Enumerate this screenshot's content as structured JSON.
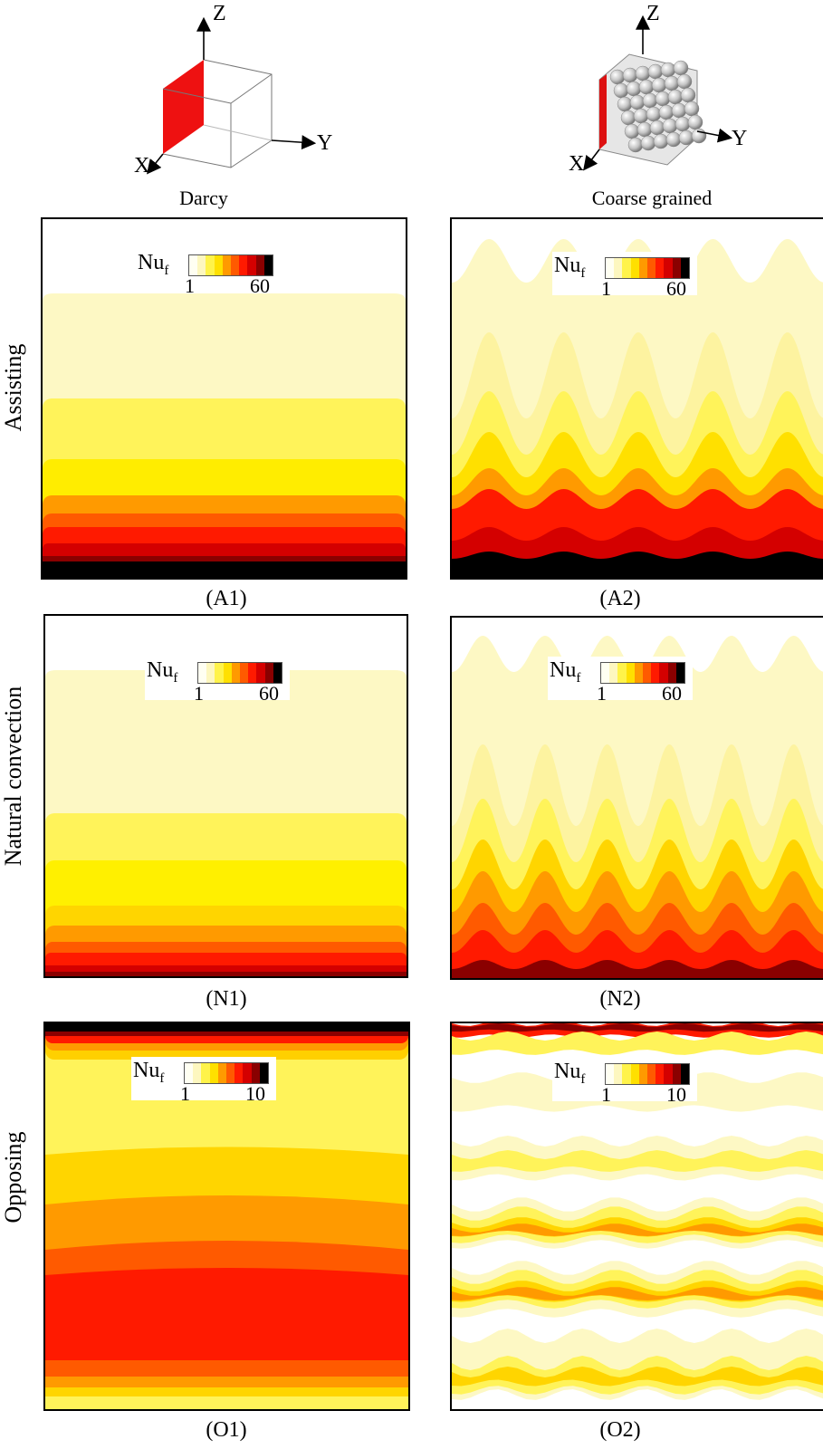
{
  "axes": {
    "z": "Z",
    "y": "Y",
    "x": "X"
  },
  "columns": [
    {
      "title": "Darcy"
    },
    {
      "title": "Coarse grained"
    }
  ],
  "rows": [
    {
      "label": "Assisting"
    },
    {
      "label": "Natural convection"
    },
    {
      "label": "Opposing"
    }
  ],
  "panels": {
    "A1": {
      "label": "(A1)",
      "colorbar": {
        "symbol": "Nu",
        "sub": "f",
        "min": "1",
        "max": "60"
      }
    },
    "A2": {
      "label": "(A2)",
      "colorbar": {
        "symbol": "Nu",
        "sub": "f",
        "min": "1",
        "max": "60"
      }
    },
    "N1": {
      "label": "(N1)",
      "colorbar": {
        "symbol": "Nu",
        "sub": "f",
        "min": "1",
        "max": "60"
      }
    },
    "N2": {
      "label": "(N2)",
      "colorbar": {
        "symbol": "Nu",
        "sub": "f",
        "min": "1",
        "max": "60"
      }
    },
    "O1": {
      "label": "(O1)",
      "colorbar": {
        "symbol": "Nu",
        "sub": "f",
        "min": "1",
        "max": "10"
      }
    },
    "O2": {
      "label": "(O2)",
      "colorbar": {
        "symbol": "Nu",
        "sub": "f",
        "min": "1",
        "max": "10"
      }
    }
  },
  "colormap": [
    "#fffff2",
    "#fdf7bf",
    "#fff34a",
    "#ffe000",
    "#ff9a00",
    "#ff5a00",
    "#ff1a00",
    "#d40000",
    "#8a0000",
    "#000000"
  ]
}
